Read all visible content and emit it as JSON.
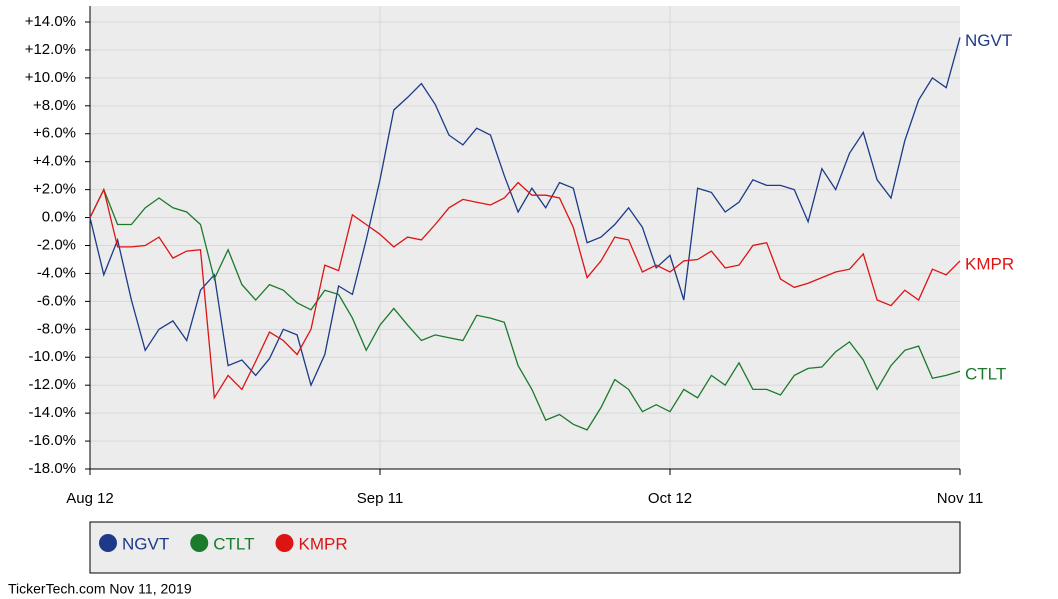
{
  "chart_data": {
    "type": "line",
    "footer": "TickerTech.com  Nov 11, 2019",
    "categories": [
      "Aug 12",
      null,
      null,
      null,
      null,
      null,
      null,
      null,
      null,
      null,
      null,
      null,
      null,
      null,
      null,
      null,
      null,
      null,
      null,
      null,
      null,
      "Sep 11",
      null,
      null,
      null,
      null,
      null,
      null,
      null,
      null,
      null,
      null,
      null,
      null,
      null,
      null,
      null,
      null,
      null,
      null,
      null,
      null,
      "Oct 12",
      null,
      null,
      null,
      null,
      null,
      null,
      null,
      null,
      null,
      null,
      null,
      null,
      null,
      null,
      null,
      null,
      null,
      null,
      null,
      null,
      "Nov 11"
    ],
    "series": [
      {
        "name": "NGVT",
        "color": "#1c3a87",
        "values": [
          0,
          -4.1,
          -1.6,
          -5.9,
          -9.5,
          -8,
          -7.4,
          -8.8,
          -5.2,
          -4.1,
          -10.6,
          -10.2,
          -11.3,
          -10.1,
          -8,
          -8.4,
          -12,
          -9.8,
          -4.9,
          -5.5,
          -1.6,
          2.7,
          7.7,
          8.6,
          9.6,
          8.1,
          5.9,
          5.2,
          6.4,
          5.9,
          3.0,
          0.4,
          2.1,
          0.7,
          2.5,
          2.1,
          -1.8,
          -1.4,
          -0.5,
          0.7,
          -0.7,
          -3.6,
          -2.7,
          -5.9,
          2.1,
          1.8,
          0.4,
          1.1,
          2.7,
          2.3,
          2.3,
          2.0,
          -0.3,
          3.5,
          2.0,
          4.6,
          6.1,
          2.7,
          1.4,
          5.5,
          8.4,
          10.0,
          9.3,
          12.9
        ]
      },
      {
        "name": "CTLT",
        "color": "#1b7a2b",
        "values": [
          0,
          2.0,
          -0.5,
          -0.5,
          0.7,
          1.4,
          0.7,
          0.4,
          -0.5,
          -4.4,
          -2.3,
          -4.8,
          -5.9,
          -4.8,
          -5.2,
          -6.1,
          -6.6,
          -5.2,
          -5.5,
          -7.2,
          -9.5,
          -7.7,
          -6.5,
          -7.7,
          -8.8,
          -8.4,
          -8.6,
          -8.8,
          -7.0,
          -7.2,
          -7.5,
          -10.6,
          -12.3,
          -14.5,
          -14.1,
          -14.8,
          -15.2,
          -13.6,
          -11.6,
          -12.3,
          -13.9,
          -13.4,
          -13.9,
          -12.3,
          -12.9,
          -11.3,
          -12.0,
          -10.4,
          -12.3,
          -12.3,
          -12.7,
          -11.3,
          -10.8,
          -10.7,
          -9.6,
          -8.9,
          -10.2,
          -12.3,
          -10.6,
          -9.5,
          -9.2,
          -11.5,
          -11.3,
          -11.0
        ]
      },
      {
        "name": "KMPR",
        "color": "#dd1414",
        "values": [
          0,
          2.0,
          -2.1,
          -2.1,
          -2.0,
          -1.4,
          -2.9,
          -2.4,
          -2.3,
          -12.9,
          -11.3,
          -12.3,
          -10.3,
          -8.2,
          -8.8,
          -9.8,
          -8.0,
          -3.4,
          -3.8,
          0.2,
          -0.5,
          -1.2,
          -2.1,
          -1.4,
          -1.6,
          -0.5,
          0.7,
          1.3,
          1.1,
          0.9,
          1.4,
          2.5,
          1.6,
          1.6,
          1.4,
          -0.7,
          -4.3,
          -3.1,
          -1.4,
          -1.6,
          -3.9,
          -3.4,
          -3.9,
          -3.1,
          -3.0,
          -2.4,
          -3.6,
          -3.4,
          -2.0,
          -1.8,
          -4.4,
          -5.0,
          -4.7,
          -4.3,
          -3.9,
          -3.7,
          -2.6,
          -5.9,
          -6.3,
          -5.2,
          -5.9,
          -3.7,
          -4.1,
          -3.1
        ]
      }
    ],
    "ylim": [
      -18,
      14
    ],
    "yticks": [
      {
        "value": 14,
        "label": "+14.0%"
      },
      {
        "value": 12,
        "label": "+12.0%"
      },
      {
        "value": 10,
        "label": "+10.0%"
      },
      {
        "value": 8,
        "label": "+8.0%"
      },
      {
        "value": 6,
        "label": "+6.0%"
      },
      {
        "value": 4,
        "label": "+4.0%"
      },
      {
        "value": 2,
        "label": "+2.0%"
      },
      {
        "value": 0,
        "label": "0.0%"
      },
      {
        "value": -2,
        "label": "-2.0%"
      },
      {
        "value": -4,
        "label": "-4.0%"
      },
      {
        "value": -6,
        "label": "-6.0%"
      },
      {
        "value": -8,
        "label": "-8.0%"
      },
      {
        "value": -10,
        "label": "-10.0%"
      },
      {
        "value": -12,
        "label": "-12.0%"
      },
      {
        "value": -14,
        "label": "-14.0%"
      },
      {
        "value": -16,
        "label": "-16.0%"
      },
      {
        "value": -18,
        "label": "-18.0%"
      }
    ],
    "grid": true,
    "legend": "bottom"
  }
}
